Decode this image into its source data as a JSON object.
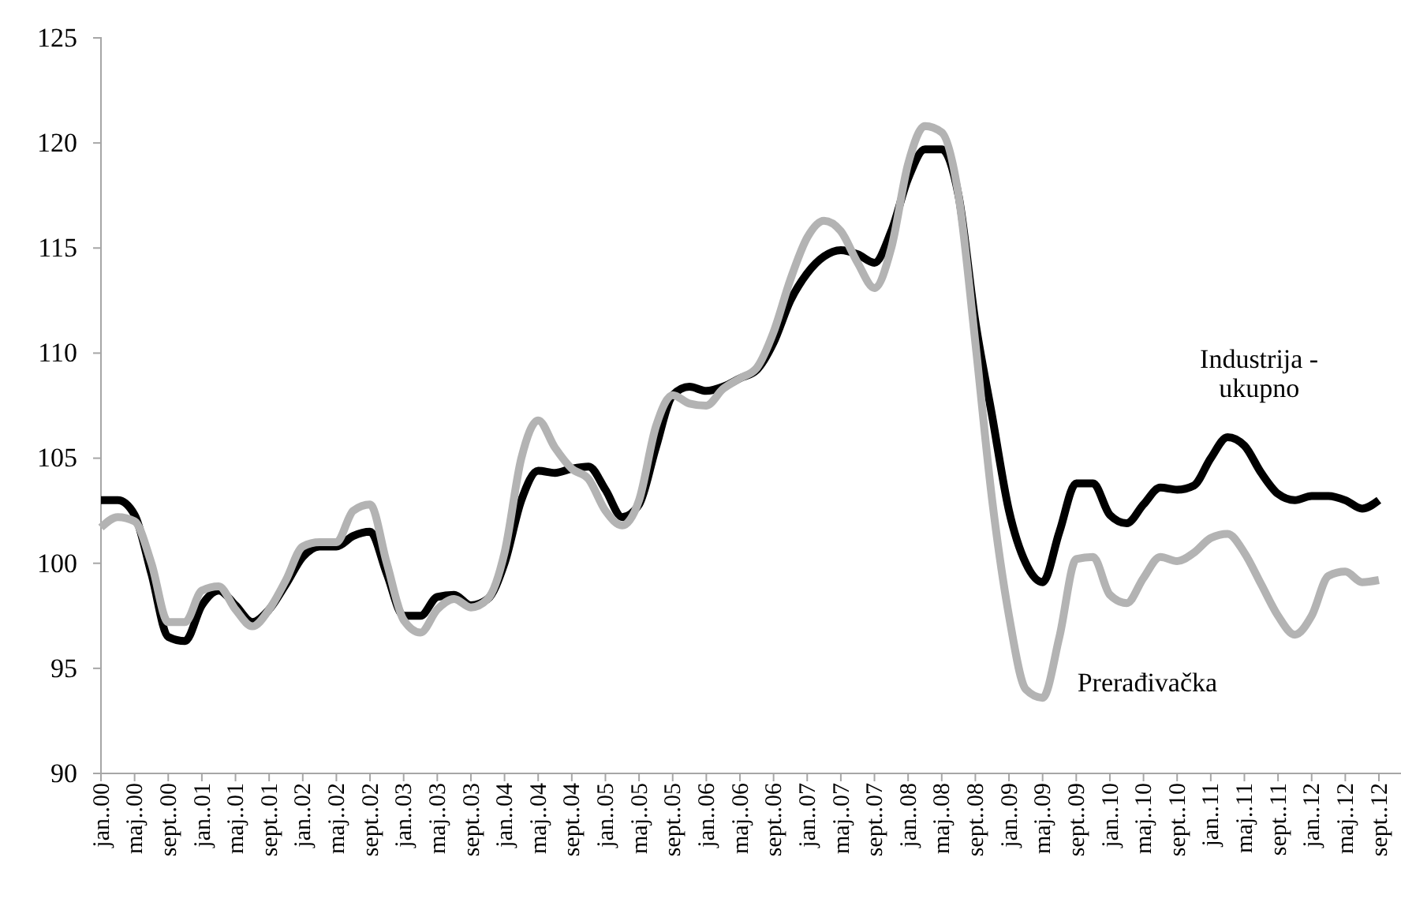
{
  "chart_data": {
    "type": "line",
    "categories": [
      "jan..00",
      null,
      "maj..00",
      null,
      "sept..00",
      null,
      "jan..01",
      null,
      "maj..01",
      null,
      "sept..01",
      null,
      "jan..02",
      null,
      "maj..02",
      null,
      "sept..02",
      null,
      "jan..03",
      null,
      "maj..03",
      null,
      "sept..03",
      null,
      "jan..04",
      null,
      "maj..04",
      null,
      "sept..04",
      null,
      "jan..05",
      null,
      "maj..05",
      null,
      "sept..05",
      null,
      "jan..06",
      null,
      "maj..06",
      null,
      "sept..06",
      null,
      "jan..07",
      null,
      "maj..07",
      null,
      "sept..07",
      null,
      "jan..08",
      null,
      "maj..08",
      null,
      "sept..08",
      null,
      "jan..09",
      null,
      "maj..09",
      null,
      "sept..09",
      null,
      "jan..10",
      null,
      "maj..10",
      null,
      "sept..10",
      null,
      "jan..11",
      null,
      "maj..11",
      null,
      "sept..11",
      null,
      "jan..12",
      null,
      "maj..12",
      null,
      "sept..12"
    ],
    "series": [
      {
        "name": "Industrija - ukupno",
        "color": "#000000",
        "values": [
          103.0,
          103.0,
          102.3,
          99.5,
          96.5,
          96.3,
          98.0,
          98.7,
          98.0,
          97.2,
          97.8,
          99.0,
          100.3,
          100.8,
          100.8,
          101.3,
          101.5,
          99.5,
          97.5,
          97.5,
          98.4,
          98.5,
          98.0,
          98.3,
          100.0,
          103.0,
          104.4,
          104.3,
          104.5,
          104.6,
          103.5,
          102.2,
          102.8,
          105.5,
          108.0,
          108.4,
          108.2,
          108.4,
          108.8,
          109.2,
          110.5,
          112.5,
          113.8,
          114.6,
          114.9,
          114.7,
          114.3,
          115.8,
          118.3,
          119.7,
          119.7,
          117.5,
          111.5,
          107.0,
          102.5,
          100.0,
          99.1,
          101.5,
          103.8,
          103.8,
          102.3,
          101.9,
          102.8,
          103.6,
          103.5,
          103.7,
          105.0,
          106.0,
          105.6,
          104.3,
          103.3,
          103.0,
          103.2,
          103.2,
          103.0,
          102.6,
          103.0
        ]
      },
      {
        "name": "Prerađivačka",
        "color": "#b3b3b3",
        "values": [
          101.7,
          102.2,
          102.0,
          100.0,
          97.2,
          97.2,
          98.7,
          98.9,
          97.8,
          97.0,
          97.8,
          99.2,
          100.8,
          101.0,
          101.0,
          102.5,
          102.8,
          100.0,
          97.3,
          96.7,
          97.8,
          98.3,
          97.9,
          98.3,
          100.5,
          105.0,
          106.8,
          105.5,
          104.5,
          104.0,
          102.5,
          101.8,
          103.0,
          106.5,
          108.0,
          107.6,
          107.5,
          108.3,
          108.8,
          109.3,
          111.0,
          113.5,
          115.5,
          116.3,
          115.8,
          114.3,
          113.1,
          115.0,
          119.0,
          120.8,
          120.5,
          117.5,
          110.5,
          103.0,
          97.5,
          94.0,
          93.6,
          96.5,
          100.2,
          100.3,
          98.5,
          98.1,
          99.3,
          100.3,
          100.1,
          100.5,
          101.2,
          101.4,
          100.5,
          99.0,
          97.5,
          96.6,
          97.5,
          99.4,
          99.6,
          99.1,
          99.2
        ]
      }
    ],
    "ylim": [
      90,
      125
    ],
    "yticks": [
      90,
      95,
      100,
      105,
      110,
      115,
      120,
      125
    ],
    "grid": false,
    "legend": false,
    "marker": "none",
    "line_style": "solid"
  }
}
